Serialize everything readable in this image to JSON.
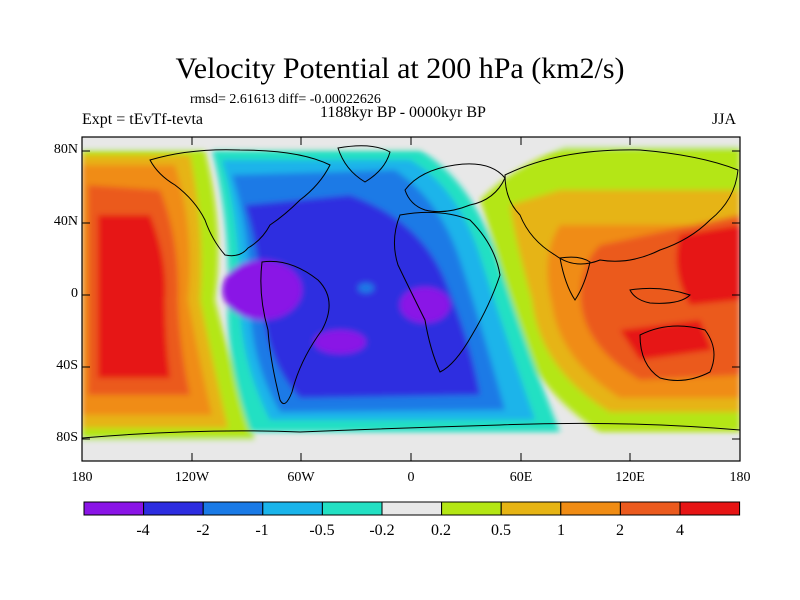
{
  "title": "Velocity Potential at 200 hPa (km2/s)",
  "stats": "rmsd= 2.61613 diff= -0.00022626",
  "left_label": "Expt = tEvTf-tevta",
  "center_label": "1188kyr BP - 0000kyr BP",
  "right_label": "JJA",
  "lat_labels": [
    "80N",
    "40N",
    "0",
    "40S",
    "80S"
  ],
  "lon_labels": [
    "180",
    "120W",
    "60W",
    "0",
    "60E",
    "120E",
    "180"
  ],
  "colorbar": {
    "colors": [
      "#8a14e6",
      "#2d2de0",
      "#1a7ae6",
      "#1ab4ea",
      "#23e0c3",
      "#e8e8e8",
      "#b4e614",
      "#e6b414",
      "#f08c14",
      "#eb5a1e",
      "#e61414"
    ],
    "labels": [
      "-4",
      "-2",
      "-1",
      "-0.5",
      "-0.2",
      "0.2",
      "0.5",
      "1",
      "2",
      "4"
    ]
  }
}
